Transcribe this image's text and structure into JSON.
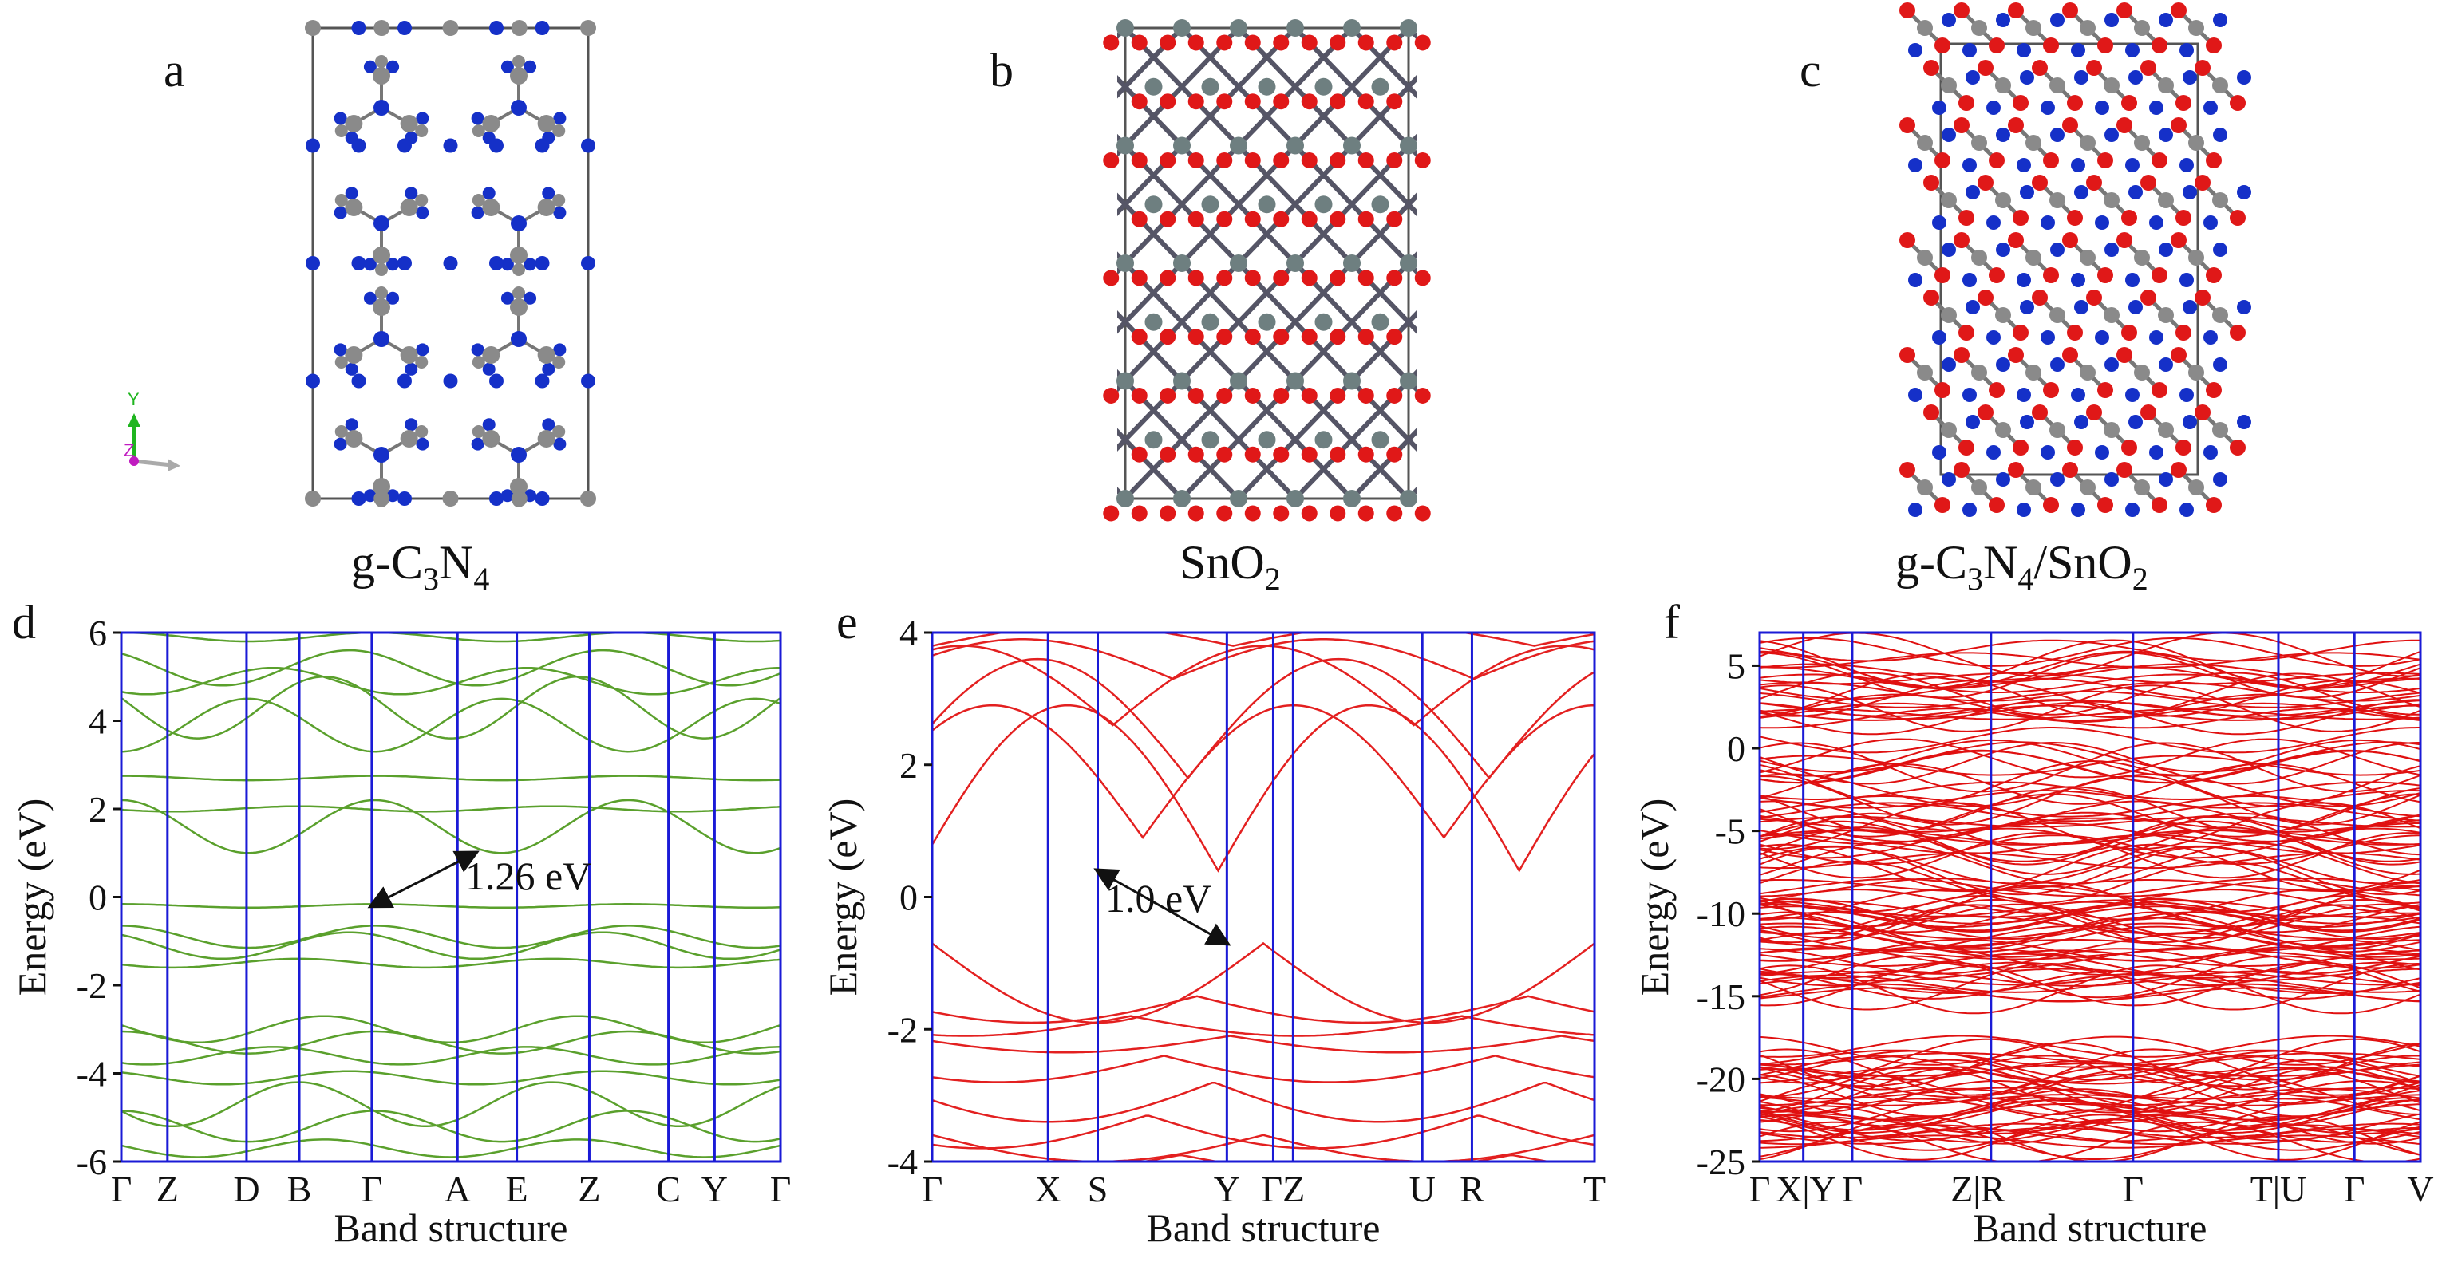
{
  "figure_labels": [
    "a",
    "b",
    "c",
    "d",
    "e",
    "f"
  ],
  "structures": [
    {
      "id": "a",
      "formula": {
        "pre": "g-C",
        "s1": "3",
        "mid": "N",
        "s2": "4",
        "post": ""
      }
    },
    {
      "id": "b",
      "formula": {
        "pre": "SnO",
        "s1": "2",
        "mid": "",
        "s2": "",
        "post": ""
      }
    },
    {
      "id": "c",
      "formula": {
        "pre": "g-C",
        "s1": "3",
        "mid": "N",
        "s2": "4",
        "post": "/SnO",
        "s3": "2"
      }
    }
  ],
  "axis_triad": {
    "y": "Y",
    "z": "Z"
  },
  "colors": {
    "band_d": "#5aa02c",
    "band_e": "#e32020",
    "band_f": "#e01010",
    "kline": "#1a1ad6",
    "carbon": "#8a8a8a",
    "nitrogen": "#1530c8",
    "oxygen": "#e01818",
    "tin": "#6e7f80"
  },
  "chart_data": [
    {
      "id": "d",
      "type": "line",
      "xlabel": "Band structure",
      "ylabel": "Energy (eV)",
      "ylim": [
        -6,
        6
      ],
      "yticks": [
        "6",
        "4",
        "2",
        "0",
        "-2",
        "-4",
        "-6"
      ],
      "kpoints": [
        "Γ",
        "Z",
        "D",
        "B",
        "Γ",
        "A",
        "E",
        "Z",
        "C",
        "Y",
        "Γ"
      ],
      "annotation": "1.26 eV",
      "gap": {
        "from": [
          4,
          -0.2
        ],
        "to": [
          5.3,
          1.0
        ]
      }
    },
    {
      "id": "e",
      "type": "line",
      "xlabel": "Band structure",
      "ylabel": "Energy (eV)",
      "ylim": [
        -4,
        4
      ],
      "yticks": [
        "4",
        "2",
        "0",
        "-2",
        "-4"
      ],
      "kpoints": [
        "Γ",
        "X",
        "S",
        "Y",
        "Γ",
        "Z",
        "U",
        "R",
        "T"
      ],
      "kpoint_text": [
        "Γ",
        "X",
        "S",
        "Y",
        "ΓZ",
        "U",
        "R",
        "T"
      ],
      "annotation": "1.0 eV",
      "gap": {
        "from": [
          2,
          0.4
        ],
        "to": [
          3,
          -0.7
        ]
      }
    },
    {
      "id": "f",
      "type": "line",
      "xlabel": "Band structure",
      "ylabel": "Energy (eV)",
      "ylim": [
        -25,
        7
      ],
      "yticks": [
        "5",
        "0",
        "-5",
        "-10",
        "-15",
        "-20",
        "-25"
      ],
      "kpoints": [
        "Γ",
        "X",
        "Y",
        "Γ",
        "Z",
        "R",
        "Γ",
        "T",
        "U",
        "Γ",
        "V"
      ],
      "kpoint_text": [
        "Γ",
        "X|Y",
        "Γ",
        "Z|R",
        "Γ",
        "T|U",
        "Γ",
        "V"
      ]
    }
  ]
}
